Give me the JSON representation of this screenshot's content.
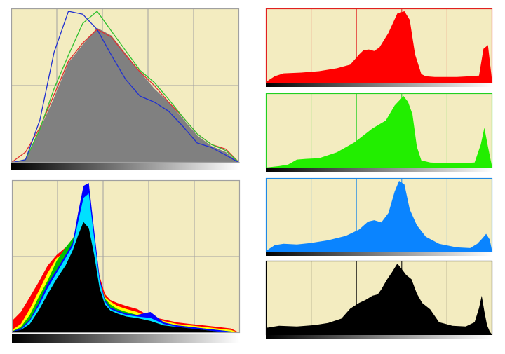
{
  "background": "#ffffff",
  "panel_fill": "#f3ecc0",
  "chart_data": [
    {
      "name": "combined-overlay",
      "type": "area",
      "grid": true,
      "grid_divisions": [
        5,
        2
      ],
      "frame_color": "#a0a0a0",
      "grid_color": "#a0a0a0",
      "gradient_bar": true,
      "x": [
        0,
        16,
        32,
        48,
        64,
        80,
        96,
        112,
        128,
        144,
        160,
        176,
        192,
        208,
        224,
        240,
        255
      ],
      "xlim": [
        0,
        255
      ],
      "ylim": [
        0,
        1
      ],
      "series": [
        {
          "color": "#808080",
          "fill": true,
          "values": [
            0,
            0.02,
            0.22,
            0.43,
            0.66,
            0.78,
            0.89,
            0.84,
            0.72,
            0.6,
            0.49,
            0.4,
            0.29,
            0.18,
            0.11,
            0.07,
            0
          ]
        },
        {
          "color": "#e03030",
          "fill": false,
          "values": [
            0,
            0.07,
            0.23,
            0.45,
            0.67,
            0.79,
            0.88,
            0.83,
            0.71,
            0.6,
            0.51,
            0.4,
            0.3,
            0.19,
            0.12,
            0.09,
            0
          ]
        },
        {
          "color": "#30c030",
          "fill": false,
          "values": [
            0,
            0.02,
            0.22,
            0.49,
            0.71,
            0.92,
            1.0,
            0.87,
            0.74,
            0.61,
            0.53,
            0.42,
            0.3,
            0.19,
            0.12,
            0.08,
            0
          ]
        },
        {
          "color": "#2030d0",
          "fill": false,
          "values": [
            0,
            0.02,
            0.28,
            0.73,
            1.0,
            0.98,
            0.88,
            0.71,
            0.55,
            0.44,
            0.4,
            0.34,
            0.24,
            0.13,
            0.1,
            0.05,
            0
          ]
        }
      ]
    },
    {
      "name": "stacked-channels",
      "type": "area",
      "grid": true,
      "grid_divisions": [
        5,
        2
      ],
      "frame_color": "#a0a0a0",
      "grid_color": "#a0a0a0",
      "gradient_bar": true,
      "x": [
        0,
        10,
        20,
        30,
        40,
        50,
        60,
        68,
        74,
        80,
        86,
        92,
        98,
        104,
        110,
        118,
        128,
        140,
        155,
        170,
        185,
        200,
        215,
        230,
        245,
        255
      ],
      "xlim": [
        0,
        255
      ],
      "ylim": [
        0,
        1
      ],
      "series": [
        {
          "color": "#ff0000",
          "values": [
            0.08,
            0.14,
            0.24,
            0.34,
            0.45,
            0.52,
            0.57,
            0.62,
            0.71,
            0.79,
            0.83,
            0.63,
            0.38,
            0.26,
            0.22,
            0.2,
            0.18,
            0.16,
            0.11,
            0.09,
            0.07,
            0.06,
            0.05,
            0.04,
            0.03,
            0
          ]
        },
        {
          "color": "#ffff00",
          "values": [
            0.02,
            0.06,
            0.16,
            0.28,
            0.4,
            0.5,
            0.54,
            0.59,
            0.66,
            0.77,
            0.81,
            0.6,
            0.34,
            0.24,
            0.21,
            0.18,
            0.16,
            0.14,
            0.1,
            0.08,
            0.06,
            0.05,
            0.04,
            0.03,
            0.02,
            0
          ]
        },
        {
          "color": "#00c000",
          "values": [
            0.01,
            0.04,
            0.12,
            0.24,
            0.35,
            0.48,
            0.57,
            0.63,
            0.7,
            0.8,
            0.86,
            0.64,
            0.35,
            0.23,
            0.19,
            0.16,
            0.14,
            0.12,
            0.08,
            0.06,
            0.05,
            0.04,
            0.03,
            0.02,
            0.01,
            0
          ]
        },
        {
          "color": "#0000ff",
          "values": [
            0.01,
            0.03,
            0.09,
            0.2,
            0.33,
            0.42,
            0.52,
            0.6,
            0.8,
            0.98,
            1.0,
            0.68,
            0.37,
            0.22,
            0.17,
            0.15,
            0.13,
            0.12,
            0.14,
            0.07,
            0.05,
            0.04,
            0.03,
            0.02,
            0.01,
            0
          ]
        },
        {
          "color": "#00e0ff",
          "values": [
            0.01,
            0.02,
            0.08,
            0.18,
            0.3,
            0.4,
            0.5,
            0.58,
            0.74,
            0.9,
            0.93,
            0.63,
            0.35,
            0.21,
            0.16,
            0.14,
            0.12,
            0.11,
            0.1,
            0.06,
            0.04,
            0.03,
            0.02,
            0.01,
            0.01,
            0
          ]
        },
        {
          "color": "#000000",
          "values": [
            0.01,
            0.02,
            0.06,
            0.15,
            0.26,
            0.36,
            0.45,
            0.55,
            0.65,
            0.74,
            0.7,
            0.52,
            0.3,
            0.19,
            0.15,
            0.13,
            0.11,
            0.1,
            0.08,
            0.05,
            0.04,
            0.03,
            0.02,
            0.01,
            0.005,
            0
          ]
        }
      ]
    },
    {
      "name": "red-channel",
      "type": "area",
      "grid": true,
      "grid_divisions": [
        5,
        1
      ],
      "frame_color": "#e02020",
      "grid_color": "#e02020",
      "fill": "#ff0000",
      "gradient_bar": true,
      "x": [
        0,
        10,
        20,
        40,
        60,
        80,
        95,
        105,
        110,
        116,
        122,
        128,
        138,
        148,
        156,
        162,
        168,
        175,
        180,
        190,
        200,
        215,
        230,
        240,
        245,
        250,
        255
      ],
      "xlim": [
        0,
        255
      ],
      "ylim": [
        0,
        1
      ],
      "values": [
        0.02,
        0.1,
        0.14,
        0.15,
        0.17,
        0.21,
        0.26,
        0.4,
        0.46,
        0.47,
        0.45,
        0.5,
        0.7,
        0.97,
        1.0,
        0.88,
        0.4,
        0.13,
        0.1,
        0.09,
        0.09,
        0.09,
        0.1,
        0.11,
        0.48,
        0.53,
        0
      ]
    },
    {
      "name": "green-channel",
      "type": "area",
      "grid": true,
      "grid_divisions": [
        5,
        1
      ],
      "frame_color": "#20d020",
      "grid_color": "#20d020",
      "fill": "#22ee00",
      "gradient_bar": true,
      "x": [
        0,
        15,
        25,
        35,
        45,
        60,
        80,
        100,
        120,
        135,
        145,
        155,
        160,
        165,
        170,
        175,
        185,
        200,
        220,
        235,
        242,
        246,
        250,
        255
      ],
      "xlim": [
        0,
        255
      ],
      "ylim": [
        0,
        1
      ],
      "values": [
        0.01,
        0.03,
        0.05,
        0.12,
        0.13,
        0.14,
        0.22,
        0.36,
        0.55,
        0.66,
        0.87,
        1.0,
        0.92,
        0.75,
        0.3,
        0.11,
        0.08,
        0.07,
        0.07,
        0.08,
        0.33,
        0.56,
        0.3,
        0
      ]
    },
    {
      "name": "blue-channel",
      "type": "area",
      "grid": true,
      "grid_divisions": [
        5,
        1
      ],
      "frame_color": "#1e88e5",
      "grid_color": "#1e88e5",
      "fill": "#0a84ff",
      "gradient_bar": true,
      "x": [
        0,
        10,
        20,
        35,
        50,
        70,
        90,
        105,
        115,
        122,
        130,
        138,
        145,
        150,
        156,
        162,
        170,
        180,
        195,
        215,
        230,
        238,
        244,
        248,
        252,
        255
      ],
      "xlim": [
        0,
        255
      ],
      "ylim": [
        0,
        1
      ],
      "values": [
        0.02,
        0.1,
        0.12,
        0.11,
        0.13,
        0.17,
        0.23,
        0.32,
        0.43,
        0.45,
        0.42,
        0.55,
        0.85,
        1.0,
        0.95,
        0.6,
        0.38,
        0.22,
        0.12,
        0.07,
        0.06,
        0.12,
        0.2,
        0.26,
        0.18,
        0
      ]
    },
    {
      "name": "luminosity-channel",
      "type": "area",
      "grid": true,
      "grid_divisions": [
        5,
        1
      ],
      "frame_color": "#000000",
      "grid_color": "#000000",
      "fill": "#000000",
      "gradient_bar": true,
      "x": [
        0,
        15,
        35,
        55,
        70,
        85,
        95,
        105,
        112,
        120,
        126,
        130,
        136,
        142,
        148,
        152,
        158,
        164,
        170,
        176,
        185,
        195,
        210,
        225,
        235,
        240,
        243,
        246,
        249,
        252,
        255
      ],
      "xlim": [
        0,
        255
      ],
      "ylim": [
        0,
        1
      ],
      "values": [
        0.1,
        0.13,
        0.12,
        0.14,
        0.17,
        0.23,
        0.37,
        0.45,
        0.49,
        0.55,
        0.57,
        0.64,
        0.77,
        0.88,
        1.0,
        0.94,
        0.84,
        0.78,
        0.58,
        0.45,
        0.36,
        0.18,
        0.13,
        0.12,
        0.18,
        0.38,
        0.55,
        0.33,
        0.14,
        0.05,
        0
      ]
    }
  ]
}
